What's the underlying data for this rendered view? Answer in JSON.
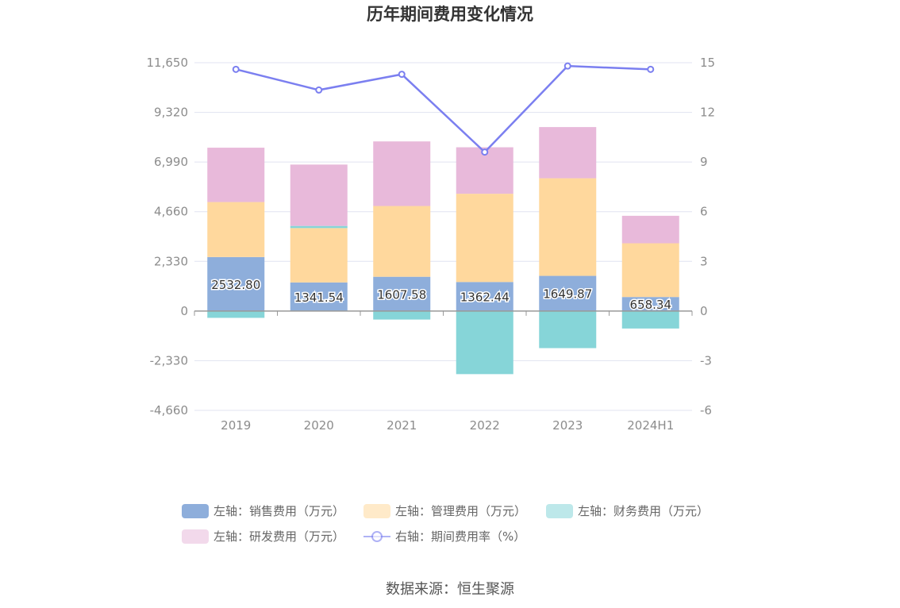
{
  "title": "历年期间费用变化情况",
  "source": "数据来源：恒生聚源",
  "chart_data": {
    "type": "bar",
    "stacked": true,
    "categories": [
      "2019",
      "2020",
      "2021",
      "2022",
      "2023",
      "2024H1"
    ],
    "left_axis": {
      "ticks": [
        "11,650",
        "9,320",
        "6,990",
        "4,660",
        "2,330",
        "0",
        "-2,330",
        "-4,660"
      ],
      "ylim": [
        -4660,
        11650
      ]
    },
    "right_axis": {
      "ticks": [
        "15",
        "12",
        "9",
        "6",
        "3",
        "0",
        "-3",
        "-6"
      ],
      "ylim": [
        -6,
        15
      ]
    },
    "series": [
      {
        "name": "左轴：销售费用（万元）",
        "color": "#8eaedb",
        "axis": "left",
        "kind": "bar",
        "values": [
          2532.8,
          1341.54,
          1607.58,
          1362.44,
          1649.87,
          658.34
        ],
        "labels": [
          "2532.80",
          "1341.54",
          "1607.58",
          "1362.44",
          "1649.87",
          "658.34"
        ]
      },
      {
        "name": "左轴：管理费用（万元）",
        "color": "#ffd89d",
        "axis": "left",
        "kind": "bar",
        "values": [
          2580,
          2550,
          3320,
          4140,
          4580,
          2520
        ]
      },
      {
        "name": "左轴：财务费用（万元）",
        "color": "#86d5d8",
        "axis": "left",
        "kind": "bar",
        "values": [
          -320,
          100,
          -400,
          -2960,
          -1740,
          -820
        ]
      },
      {
        "name": "左轴：研发费用（万元）",
        "color": "#e8b9da",
        "axis": "left",
        "kind": "bar",
        "values": [
          2550,
          2880,
          3030,
          2180,
          2400,
          1290
        ]
      },
      {
        "name": "右轴：期间费用率（%）",
        "color": "#7b7ff0",
        "axis": "right",
        "kind": "line",
        "values": [
          14.6,
          13.35,
          14.3,
          9.6,
          14.8,
          14.6
        ]
      }
    ],
    "legend_position": "bottom",
    "grid": true
  }
}
